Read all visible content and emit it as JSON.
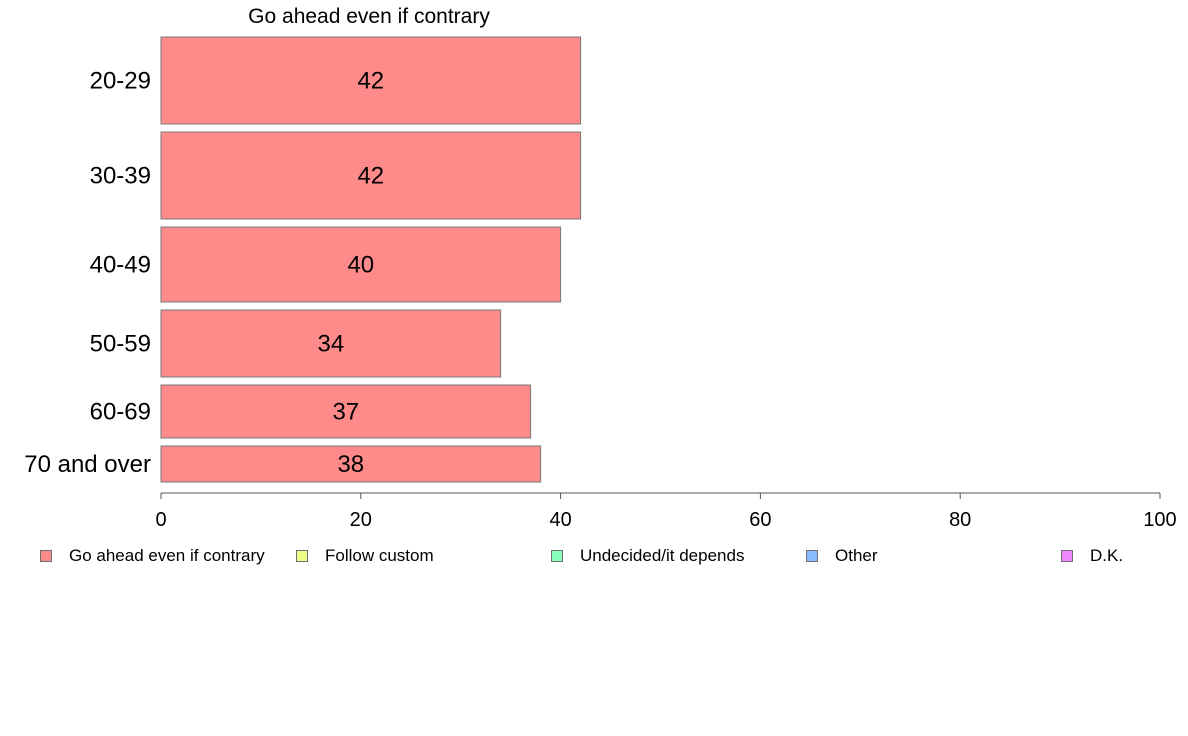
{
  "chart_data": {
    "type": "bar",
    "orientation": "horizontal",
    "title": "Go ahead even if contrary",
    "categories": [
      "20-29",
      "30-39",
      "40-49",
      "50-59",
      "60-69",
      "70 and over"
    ],
    "series": [
      {
        "name": "Go ahead even if contrary",
        "values": [
          42,
          42,
          40,
          34,
          37,
          38
        ],
        "color": "#ff8a8a"
      }
    ],
    "xlim": [
      0,
      100
    ],
    "xticks": [
      0,
      20,
      40,
      60,
      80,
      100
    ],
    "grid": false,
    "legend_position": "bottom",
    "legend": [
      {
        "label": "Go ahead even if contrary",
        "color": "#ff8a8a"
      },
      {
        "label": "Follow custom",
        "color": "#eeff88"
      },
      {
        "label": "Undecided/it depends",
        "color": "#88ffbb"
      },
      {
        "label": "Other",
        "color": "#88bbff"
      },
      {
        "label": "D.K.",
        "color": "#ee88ff"
      }
    ]
  }
}
